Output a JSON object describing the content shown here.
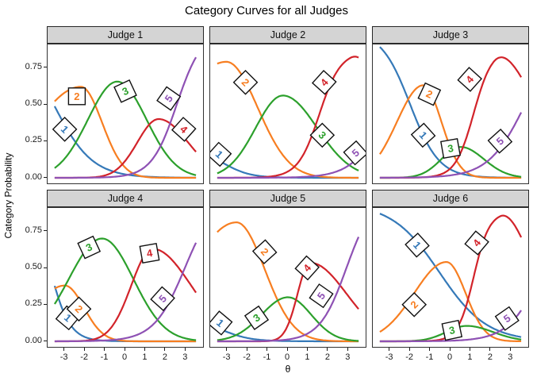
{
  "chart_data": {
    "type": "line",
    "title": "Category Curves for all Judges",
    "xlabel": "θ",
    "ylabel": "Category  Probability",
    "x_range": [
      -3.5,
      3.5
    ],
    "x_ticks": [
      -3,
      -2,
      -1,
      0,
      1,
      2,
      3
    ],
    "x_tick_labels": [
      "-3",
      "-2",
      "-1",
      "0",
      "1",
      "2",
      "3"
    ],
    "y_ticks": [
      0,
      0.25,
      0.5,
      0.75
    ],
    "y_tick_labels": [
      "0.00",
      "0.25",
      "0.50",
      "0.75"
    ],
    "legend_position": "none",
    "grid": false,
    "categories": [
      {
        "id": "1",
        "color": "#3579B8"
      },
      {
        "id": "2",
        "color": "#F77E21"
      },
      {
        "id": "3",
        "color": "#2CA02C"
      },
      {
        "id": "4",
        "color": "#D2232A"
      },
      {
        "id": "5",
        "color": "#8E51B4"
      }
    ],
    "facets": [
      {
        "title": "Judge 1",
        "curves": [
          {
            "cat": "1",
            "kind": "fall",
            "c": 1.0,
            "m": -3.55,
            "k": 1.05
          },
          {
            "cat": "2",
            "kind": "bump",
            "c": 0.62,
            "m": -2.2,
            "sl": 2.2,
            "sr": 1.05
          },
          {
            "cat": "3",
            "kind": "bump",
            "c": 0.655,
            "m": -0.4,
            "sl": 1.45,
            "sr": 1.45
          },
          {
            "cat": "4",
            "kind": "bump",
            "c": 0.4,
            "m": 1.65,
            "sl": 1.05,
            "sr": 1.45
          },
          {
            "cat": "5",
            "kind": "rise",
            "c": 1.0,
            "m": 2.55,
            "k": 1.6
          }
        ],
        "labels": [
          {
            "cat": "1",
            "x": -3.0,
            "y": 0.33,
            "rot": 45
          },
          {
            "cat": "2",
            "x": -2.4,
            "y": 0.555,
            "rot": 0
          },
          {
            "cat": "3",
            "x": 0.0,
            "y": 0.59,
            "rot": -25
          },
          {
            "cat": "4",
            "x": 2.9,
            "y": 0.33,
            "rot": 42
          },
          {
            "cat": "5",
            "x": 2.15,
            "y": 0.54,
            "rot": -55
          }
        ]
      },
      {
        "title": "Judge 2",
        "curves": [
          {
            "cat": "1",
            "kind": "fall",
            "c": 0.2,
            "m": -3.2,
            "k": 1.5
          },
          {
            "cat": "2",
            "kind": "bump",
            "c": 0.79,
            "m": -3.05,
            "sl": 2.5,
            "sr": 1.55
          },
          {
            "cat": "3",
            "kind": "bump",
            "c": 0.56,
            "m": -0.25,
            "sl": 1.35,
            "sr": 1.7
          },
          {
            "cat": "4",
            "kind": "risefall",
            "c": 0.86,
            "k": 1.9,
            "m": 1.55,
            "m2": 3.1,
            "sr": 1.8
          },
          {
            "cat": "5",
            "kind": "rise",
            "c": 1.0,
            "m": 5.0,
            "k": 1.2
          }
        ],
        "labels": [
          {
            "cat": "1",
            "x": -3.4,
            "y": 0.16,
            "rot": 42
          },
          {
            "cat": "2",
            "x": -2.1,
            "y": 0.65,
            "rot": 45
          },
          {
            "cat": "3",
            "x": 1.7,
            "y": 0.29,
            "rot": 45
          },
          {
            "cat": "4",
            "x": 1.8,
            "y": 0.65,
            "rot": -48
          },
          {
            "cat": "5",
            "x": 3.35,
            "y": 0.17,
            "rot": -42
          }
        ]
      },
      {
        "title": "Judge 3",
        "curves": [
          {
            "cat": "1",
            "kind": "fall",
            "c": 1.0,
            "m": -2.0,
            "k": 1.4
          },
          {
            "cat": "2",
            "kind": "bump",
            "c": 0.63,
            "m": -1.35,
            "sl": 1.3,
            "sr": 0.9
          },
          {
            "cat": "3",
            "kind": "bump",
            "c": 0.21,
            "m": 0.5,
            "sl": 0.95,
            "sr": 1.15
          },
          {
            "cat": "4",
            "kind": "risefall",
            "c": 0.88,
            "k": 2.2,
            "m": 1.15,
            "m2": 2.1,
            "sr": 2.0
          },
          {
            "cat": "5",
            "kind": "rise",
            "c": 1.0,
            "m": 3.7,
            "k": 1.1
          }
        ],
        "labels": [
          {
            "cat": "1",
            "x": -1.35,
            "y": 0.29,
            "rot": 48
          },
          {
            "cat": "2",
            "x": -1.05,
            "y": 0.57,
            "rot": 25
          },
          {
            "cat": "3",
            "x": 0.0,
            "y": 0.2,
            "rot": -10
          },
          {
            "cat": "4",
            "x": 0.95,
            "y": 0.67,
            "rot": -48
          },
          {
            "cat": "5",
            "x": 2.45,
            "y": 0.25,
            "rot": -42
          }
        ]
      },
      {
        "title": "Judge 4",
        "curves": [
          {
            "cat": "1",
            "kind": "fall",
            "c": 1.0,
            "m": -3.75,
            "k": 2.0
          },
          {
            "cat": "2",
            "kind": "bump",
            "c": 0.38,
            "m": -3.0,
            "sl": 1.5,
            "sr": 0.95
          },
          {
            "cat": "3",
            "kind": "bump",
            "c": 0.7,
            "m": -1.15,
            "sl": 1.65,
            "sr": 1.55
          },
          {
            "cat": "4",
            "kind": "bump",
            "c": 0.63,
            "m": 1.35,
            "sl": 1.05,
            "sr": 1.9
          },
          {
            "cat": "5",
            "kind": "rise",
            "c": 1.0,
            "m": 2.95,
            "k": 1.3
          }
        ],
        "labels": [
          {
            "cat": "1",
            "x": -2.85,
            "y": 0.16,
            "rot": 40
          },
          {
            "cat": "2",
            "x": -2.3,
            "y": 0.22,
            "rot": 45
          },
          {
            "cat": "3",
            "x": -1.8,
            "y": 0.64,
            "rot": -25
          },
          {
            "cat": "4",
            "x": 1.2,
            "y": 0.6,
            "rot": -10
          },
          {
            "cat": "5",
            "x": 1.85,
            "y": 0.29,
            "rot": -48
          }
        ]
      },
      {
        "title": "Judge 5",
        "curves": [
          {
            "cat": "1",
            "kind": "fall",
            "c": 0.16,
            "m": -3.3,
            "k": 1.4
          },
          {
            "cat": "2",
            "kind": "bump",
            "c": 0.81,
            "m": -2.55,
            "sl": 2.3,
            "sr": 1.4
          },
          {
            "cat": "3",
            "kind": "bump",
            "c": 0.3,
            "m": 0.0,
            "sl": 1.3,
            "sr": 1.15
          },
          {
            "cat": "4",
            "kind": "bump",
            "c": 0.535,
            "m": 1.1,
            "sl": 0.62,
            "sr": 1.8
          },
          {
            "cat": "5",
            "kind": "rise",
            "c": 1.0,
            "m": 2.9,
            "k": 1.5
          }
        ],
        "labels": [
          {
            "cat": "1",
            "x": -3.35,
            "y": 0.125,
            "rot": 40
          },
          {
            "cat": "2",
            "x": -1.15,
            "y": 0.61,
            "rot": 48
          },
          {
            "cat": "3",
            "x": -1.55,
            "y": 0.16,
            "rot": -35
          },
          {
            "cat": "4",
            "x": 0.95,
            "y": 0.5,
            "rot": -48
          },
          {
            "cat": "5",
            "x": 1.65,
            "y": 0.31,
            "rot": -55
          }
        ]
      },
      {
        "title": "Judge 6",
        "curves": [
          {
            "cat": "1",
            "kind": "fall",
            "c": 0.94,
            "m": -0.55,
            "k": 0.85
          },
          {
            "cat": "2",
            "kind": "bump",
            "c": 0.54,
            "m": -0.2,
            "sl": 1.6,
            "sr": 0.95
          },
          {
            "cat": "3",
            "kind": "bump",
            "c": 0.105,
            "m": 0.8,
            "sl": 1.0,
            "sr": 1.3
          },
          {
            "cat": "4",
            "kind": "risefall",
            "c": 0.88,
            "k": 2.6,
            "m": 1.15,
            "m2": 2.45,
            "sr": 1.6
          },
          {
            "cat": "5",
            "kind": "rise",
            "c": 1.0,
            "m": 4.6,
            "k": 1.2
          }
        ],
        "labels": [
          {
            "cat": "1",
            "x": -1.65,
            "y": 0.655,
            "rot": 48
          },
          {
            "cat": "2",
            "x": -1.8,
            "y": 0.25,
            "rot": -45
          },
          {
            "cat": "3",
            "x": 0.07,
            "y": 0.075,
            "rot": -12
          },
          {
            "cat": "4",
            "x": 1.3,
            "y": 0.67,
            "rot": -50
          },
          {
            "cat": "5",
            "x": 2.8,
            "y": 0.155,
            "rot": -35
          }
        ]
      }
    ]
  },
  "style": {
    "strip_bg": "#d4d4d4",
    "panel_border": "#333333",
    "label_box_fill": "#ffffff",
    "label_box_border": "#111111"
  }
}
